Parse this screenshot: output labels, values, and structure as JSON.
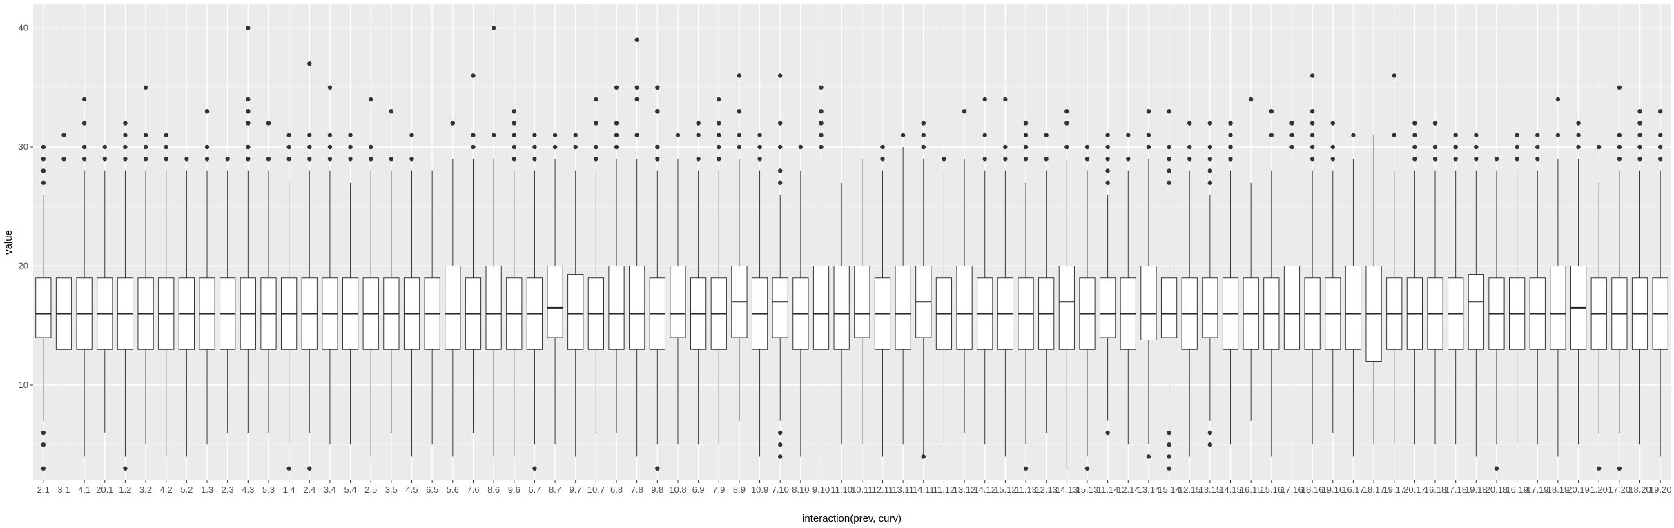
{
  "chart_data": {
    "type": "box",
    "xlabel": "interaction(prev, curv)",
    "ylabel": "value",
    "ylim": [
      2,
      42
    ],
    "yticks": [
      10,
      20,
      30,
      40
    ],
    "grid": true,
    "categories": [
      "2.1",
      "3.1",
      "4.1",
      "20.1",
      "1.2",
      "3.2",
      "4.2",
      "5.2",
      "1.3",
      "2.3",
      "4.3",
      "5.3",
      "1.4",
      "2.4",
      "3.4",
      "5.4",
      "2.5",
      "3.5",
      "4.5",
      "6.5",
      "5.6",
      "7.6",
      "8.6",
      "9.6",
      "6.7",
      "8.7",
      "9.7",
      "10.7",
      "6.8",
      "7.8",
      "9.8",
      "10.8",
      "6.9",
      "7.9",
      "8.9",
      "10.9",
      "7.10",
      "8.10",
      "9.10",
      "11.10",
      "10.11",
      "12.11",
      "13.11",
      "14.11",
      "11.12",
      "13.12",
      "14.12",
      "15.12",
      "11.13",
      "12.13",
      "14.13",
      "15.13",
      "11.14",
      "12.14",
      "13.14",
      "15.14",
      "12.15",
      "13.15",
      "14.15",
      "16.15",
      "15.16",
      "17.16",
      "18.16",
      "19.16",
      "16.17",
      "18.17",
      "19.17",
      "20.17",
      "16.18",
      "17.18",
      "19.18",
      "20.18",
      "16.19",
      "17.19",
      "18.19",
      "20.19",
      "1.20",
      "17.20",
      "18.20",
      "19.20"
    ],
    "boxes": [
      {
        "q1": 14,
        "med": 16,
        "q3": 19,
        "lo": 7,
        "hi": 26,
        "out": [
          3,
          5,
          6,
          27,
          28,
          29,
          30
        ]
      },
      {
        "q1": 13,
        "med": 16,
        "q3": 19,
        "lo": 4,
        "hi": 28,
        "out": [
          29,
          31
        ]
      },
      {
        "q1": 13,
        "med": 16,
        "q3": 19,
        "lo": 4,
        "hi": 28,
        "out": [
          29,
          30,
          32,
          34
        ]
      },
      {
        "q1": 13,
        "med": 16,
        "q3": 19,
        "lo": 6,
        "hi": 28,
        "out": [
          29,
          30
        ]
      },
      {
        "q1": 13,
        "med": 16,
        "q3": 19,
        "lo": 4,
        "hi": 28,
        "out": [
          3,
          29,
          30,
          31,
          32
        ]
      },
      {
        "q1": 13,
        "med": 16,
        "q3": 19,
        "lo": 5,
        "hi": 28,
        "out": [
          29,
          30,
          31,
          35
        ]
      },
      {
        "q1": 13,
        "med": 16,
        "q3": 19,
        "lo": 4,
        "hi": 28,
        "out": [
          29,
          30,
          31
        ]
      },
      {
        "q1": 13,
        "med": 16,
        "q3": 19,
        "lo": 4,
        "hi": 28,
        "out": [
          29
        ]
      },
      {
        "q1": 13,
        "med": 16,
        "q3": 19,
        "lo": 5,
        "hi": 28,
        "out": [
          29,
          30,
          33
        ]
      },
      {
        "q1": 13,
        "med": 16,
        "q3": 19,
        "lo": 6,
        "hi": 28,
        "out": [
          29
        ]
      },
      {
        "q1": 13,
        "med": 16,
        "q3": 19,
        "lo": 6,
        "hi": 28,
        "out": [
          29,
          30,
          32,
          33,
          34,
          40
        ]
      },
      {
        "q1": 13,
        "med": 16,
        "q3": 19,
        "lo": 6,
        "hi": 28,
        "out": [
          29,
          32
        ]
      },
      {
        "q1": 13,
        "med": 16,
        "q3": 19,
        "lo": 5,
        "hi": 27,
        "out": [
          3,
          29,
          30,
          31
        ]
      },
      {
        "q1": 13,
        "med": 16,
        "q3": 19,
        "lo": 6,
        "hi": 28,
        "out": [
          3,
          29,
          30,
          31,
          37
        ]
      },
      {
        "q1": 13,
        "med": 16,
        "q3": 19,
        "lo": 5,
        "hi": 28,
        "out": [
          29,
          30,
          31,
          35
        ]
      },
      {
        "q1": 13,
        "med": 16,
        "q3": 19,
        "lo": 5,
        "hi": 27,
        "out": [
          29,
          30,
          31
        ]
      },
      {
        "q1": 13,
        "med": 16,
        "q3": 19,
        "lo": 4,
        "hi": 28,
        "out": [
          29,
          30,
          34
        ]
      },
      {
        "q1": 13,
        "med": 16,
        "q3": 19,
        "lo": 6,
        "hi": 28,
        "out": [
          29,
          33
        ]
      },
      {
        "q1": 13,
        "med": 16,
        "q3": 19,
        "lo": 4,
        "hi": 28,
        "out": [
          29,
          31
        ]
      },
      {
        "q1": 13,
        "med": 16,
        "q3": 19,
        "lo": 5,
        "hi": 28,
        "out": []
      },
      {
        "q1": 13,
        "med": 16,
        "q3": 20,
        "lo": 4,
        "hi": 29,
        "out": [
          32
        ]
      },
      {
        "q1": 13,
        "med": 16,
        "q3": 19,
        "lo": 6,
        "hi": 29,
        "out": [
          30,
          31,
          36
        ]
      },
      {
        "q1": 13,
        "med": 16,
        "q3": 20,
        "lo": 4,
        "hi": 29,
        "out": [
          31,
          40
        ]
      },
      {
        "q1": 13,
        "med": 16,
        "q3": 19,
        "lo": 4,
        "hi": 28,
        "out": [
          29,
          30,
          31,
          32,
          33
        ]
      },
      {
        "q1": 13,
        "med": 16,
        "q3": 19,
        "lo": 5,
        "hi": 28,
        "out": [
          3,
          29,
          30,
          31
        ]
      },
      {
        "q1": 14,
        "med": 16.5,
        "q3": 20,
        "lo": 5,
        "hi": 29,
        "out": [
          30,
          31
        ]
      },
      {
        "q1": 13,
        "med": 16,
        "q3": 19.3,
        "lo": 4,
        "hi": 28,
        "out": [
          30,
          31
        ]
      },
      {
        "q1": 13,
        "med": 16,
        "q3": 19,
        "lo": 6,
        "hi": 28,
        "out": [
          29,
          30,
          32,
          34
        ]
      },
      {
        "q1": 13,
        "med": 16,
        "q3": 20,
        "lo": 6,
        "hi": 29,
        "out": [
          30,
          31,
          32,
          35
        ]
      },
      {
        "q1": 13,
        "med": 16,
        "q3": 20,
        "lo": 4,
        "hi": 29,
        "out": [
          31,
          34,
          35,
          39
        ]
      },
      {
        "q1": 13,
        "med": 16,
        "q3": 19,
        "lo": 5,
        "hi": 28,
        "out": [
          3,
          29,
          30,
          33,
          35
        ]
      },
      {
        "q1": 14,
        "med": 16,
        "q3": 20,
        "lo": 5,
        "hi": 29,
        "out": [
          31
        ]
      },
      {
        "q1": 13,
        "med": 16,
        "q3": 19,
        "lo": 5,
        "hi": 28,
        "out": [
          29,
          31,
          32
        ]
      },
      {
        "q1": 13,
        "med": 16,
        "q3": 19,
        "lo": 5,
        "hi": 28,
        "out": [
          29,
          30,
          31,
          32,
          34
        ]
      },
      {
        "q1": 14,
        "med": 17,
        "q3": 20,
        "lo": 7,
        "hi": 29,
        "out": [
          30,
          31,
          33,
          36
        ]
      },
      {
        "q1": 13,
        "med": 16,
        "q3": 19,
        "lo": 4,
        "hi": 28,
        "out": [
          29,
          30,
          31
        ]
      },
      {
        "q1": 14,
        "med": 17,
        "q3": 19,
        "lo": 7,
        "hi": 26,
        "out": [
          4,
          5,
          6,
          27,
          28,
          30,
          32,
          36
        ]
      },
      {
        "q1": 13,
        "med": 16,
        "q3": 19,
        "lo": 4,
        "hi": 28,
        "out": [
          30
        ]
      },
      {
        "q1": 13,
        "med": 16,
        "q3": 20,
        "lo": 4,
        "hi": 29,
        "out": [
          30,
          31,
          32,
          33,
          35
        ]
      },
      {
        "q1": 13,
        "med": 16,
        "q3": 20,
        "lo": 5,
        "hi": 27,
        "out": []
      },
      {
        "q1": 14,
        "med": 16,
        "q3": 20,
        "lo": 5,
        "hi": 29,
        "out": []
      },
      {
        "q1": 13,
        "med": 16,
        "q3": 19,
        "lo": 4,
        "hi": 28,
        "out": [
          29,
          30
        ]
      },
      {
        "q1": 13,
        "med": 16,
        "q3": 20,
        "lo": 5,
        "hi": 30,
        "out": [
          31
        ]
      },
      {
        "q1": 14,
        "med": 17,
        "q3": 20,
        "lo": 4,
        "hi": 29,
        "out": [
          4,
          30,
          31,
          32
        ]
      },
      {
        "q1": 13,
        "med": 16,
        "q3": 19,
        "lo": 5,
        "hi": 28,
        "out": [
          29
        ]
      },
      {
        "q1": 13,
        "med": 16,
        "q3": 20,
        "lo": 6,
        "hi": 29,
        "out": [
          33
        ]
      },
      {
        "q1": 13,
        "med": 16,
        "q3": 19,
        "lo": 5,
        "hi": 28,
        "out": [
          29,
          31,
          34
        ]
      },
      {
        "q1": 13,
        "med": 16,
        "q3": 19,
        "lo": 4,
        "hi": 28,
        "out": [
          29,
          30,
          34
        ]
      },
      {
        "q1": 13,
        "med": 16,
        "q3": 19,
        "lo": 5,
        "hi": 27,
        "out": [
          3,
          29,
          30,
          31,
          32
        ]
      },
      {
        "q1": 13,
        "med": 16,
        "q3": 19,
        "lo": 6,
        "hi": 28,
        "out": [
          29,
          31
        ]
      },
      {
        "q1": 13,
        "med": 17,
        "q3": 20,
        "lo": 3,
        "hi": 29,
        "out": [
          30,
          32,
          33
        ]
      },
      {
        "q1": 13,
        "med": 16,
        "q3": 19,
        "lo": 4,
        "hi": 28,
        "out": [
          3,
          29,
          30
        ]
      },
      {
        "q1": 14,
        "med": 16,
        "q3": 19,
        "lo": 7,
        "hi": 26,
        "out": [
          6,
          27,
          28,
          29,
          30,
          31
        ]
      },
      {
        "q1": 13,
        "med": 16,
        "q3": 19,
        "lo": 5,
        "hi": 28,
        "out": [
          29,
          31
        ]
      },
      {
        "q1": 13.8,
        "med": 16,
        "q3": 20,
        "lo": 5,
        "hi": 29,
        "out": [
          4,
          30,
          31,
          33
        ]
      },
      {
        "q1": 14,
        "med": 16,
        "q3": 19,
        "lo": 6,
        "hi": 26,
        "out": [
          3,
          4,
          5,
          6,
          27,
          28,
          29,
          30,
          33
        ]
      },
      {
        "q1": 13,
        "med": 16,
        "q3": 19,
        "lo": 4,
        "hi": 28,
        "out": [
          29,
          30,
          32
        ]
      },
      {
        "q1": 14,
        "med": 16,
        "q3": 19,
        "lo": 7,
        "hi": 26,
        "out": [
          5,
          6,
          27,
          28,
          29,
          30,
          32
        ]
      },
      {
        "q1": 13,
        "med": 16,
        "q3": 19,
        "lo": 5,
        "hi": 28,
        "out": [
          29,
          30,
          31,
          32
        ]
      },
      {
        "q1": 13,
        "med": 16,
        "q3": 19,
        "lo": 7,
        "hi": 27,
        "out": [
          34
        ]
      },
      {
        "q1": 13,
        "med": 16,
        "q3": 19,
        "lo": 4,
        "hi": 28,
        "out": [
          31,
          33
        ]
      },
      {
        "q1": 13,
        "med": 16,
        "q3": 20,
        "lo": 5,
        "hi": 29,
        "out": [
          30,
          31,
          32
        ]
      },
      {
        "q1": 13,
        "med": 16,
        "q3": 19,
        "lo": 5,
        "hi": 28,
        "out": [
          29,
          30,
          31,
          32,
          33,
          36
        ]
      },
      {
        "q1": 13,
        "med": 16,
        "q3": 19,
        "lo": 6,
        "hi": 28,
        "out": [
          29,
          30,
          32
        ]
      },
      {
        "q1": 13,
        "med": 16,
        "q3": 20,
        "lo": 4,
        "hi": 29,
        "out": [
          31
        ]
      },
      {
        "q1": 12,
        "med": 16,
        "q3": 20,
        "lo": 5,
        "hi": 31,
        "out": []
      },
      {
        "q1": 13,
        "med": 16,
        "q3": 19,
        "lo": 5,
        "hi": 28,
        "out": [
          31,
          36
        ]
      },
      {
        "q1": 13,
        "med": 16,
        "q3": 19,
        "lo": 5,
        "hi": 28,
        "out": [
          29,
          30,
          31,
          32
        ]
      },
      {
        "q1": 13,
        "med": 16,
        "q3": 19,
        "lo": 5,
        "hi": 28,
        "out": [
          29,
          30,
          32
        ]
      },
      {
        "q1": 13,
        "med": 16,
        "q3": 19,
        "lo": 5,
        "hi": 28,
        "out": [
          29,
          30,
          31
        ]
      },
      {
        "q1": 13,
        "med": 17,
        "q3": 19.3,
        "lo": 4,
        "hi": 28,
        "out": [
          29,
          30,
          31
        ]
      },
      {
        "q1": 13,
        "med": 16,
        "q3": 19,
        "lo": 5,
        "hi": 28,
        "out": [
          3,
          29
        ]
      },
      {
        "q1": 13,
        "med": 16,
        "q3": 19,
        "lo": 5,
        "hi": 28,
        "out": [
          29,
          30,
          31
        ]
      },
      {
        "q1": 13,
        "med": 16,
        "q3": 19,
        "lo": 5,
        "hi": 28,
        "out": [
          29,
          30,
          31
        ]
      },
      {
        "q1": 13,
        "med": 16,
        "q3": 20,
        "lo": 4,
        "hi": 29,
        "out": [
          31,
          34
        ]
      },
      {
        "q1": 13,
        "med": 16.5,
        "q3": 20,
        "lo": 5,
        "hi": 29,
        "out": [
          30,
          31,
          32
        ]
      },
      {
        "q1": 13,
        "med": 16,
        "q3": 19,
        "lo": 6,
        "hi": 27,
        "out": [
          3,
          30
        ]
      },
      {
        "q1": 13,
        "med": 16,
        "q3": 19,
        "lo": 6,
        "hi": 28,
        "out": [
          3,
          29,
          30,
          31,
          35
        ]
      },
      {
        "q1": 13,
        "med": 16,
        "q3": 19,
        "lo": 5,
        "hi": 28,
        "out": [
          29,
          30,
          31,
          32,
          33
        ]
      },
      {
        "q1": 13,
        "med": 16,
        "q3": 19,
        "lo": 4,
        "hi": 28,
        "out": [
          29,
          30,
          31,
          33
        ]
      }
    ]
  }
}
